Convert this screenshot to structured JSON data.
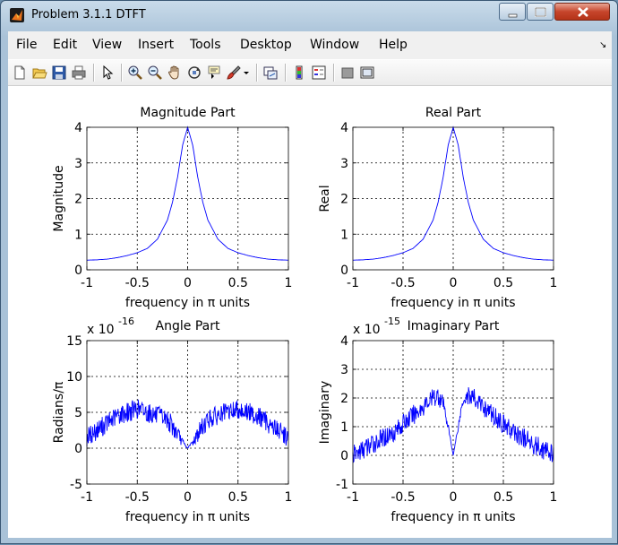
{
  "window": {
    "title": "Problem 3.1.1 DTFT"
  },
  "menu": [
    "File",
    "Edit",
    "View",
    "Insert",
    "Tools",
    "Desktop",
    "Window",
    "Help"
  ],
  "toolbar": {
    "icons": [
      "new-figure-icon",
      "open-file-icon",
      "save-icon",
      "print-icon",
      "pointer-icon",
      "zoom-in-icon",
      "zoom-out-icon",
      "pan-icon",
      "rotate-3d-icon",
      "data-cursor-icon",
      "brush-icon",
      "brush-dropdown-icon",
      "link-plot-icon",
      "colorbar-icon",
      "legend-icon",
      "hide-plot-tools-icon",
      "show-plot-tools-icon"
    ]
  },
  "colors": {
    "line": "#0000ff",
    "axes_bg": "#ffffff",
    "figure_bg": "#ffffff"
  },
  "chart_data": [
    {
      "type": "line",
      "title": "Magnitude Part",
      "xlabel": "frequency in π units",
      "ylabel": "Magnitude",
      "xlim": [
        -1,
        1
      ],
      "ylim": [
        0,
        4
      ],
      "xticks": [
        "-1",
        "-0.5",
        "0",
        "0.5",
        "1"
      ],
      "yticks": [
        "0",
        "1",
        "2",
        "3",
        "4"
      ],
      "exponent": "",
      "grid": true,
      "series": [
        {
          "x": [
            -1,
            -0.9,
            -0.8,
            -0.7,
            -0.6,
            -0.5,
            -0.4,
            -0.3,
            -0.2,
            -0.15,
            -0.1,
            -0.05,
            0,
            0.05,
            0.1,
            0.15,
            0.2,
            0.3,
            0.4,
            0.5,
            0.6,
            0.7,
            0.8,
            0.9,
            1
          ],
          "y": [
            0.27,
            0.28,
            0.3,
            0.34,
            0.4,
            0.48,
            0.6,
            0.86,
            1.4,
            1.9,
            2.6,
            3.5,
            4.0,
            3.5,
            2.6,
            1.9,
            1.4,
            0.86,
            0.6,
            0.48,
            0.4,
            0.34,
            0.3,
            0.28,
            0.27
          ]
        }
      ]
    },
    {
      "type": "line",
      "title": "Real Part",
      "xlabel": "frequency in π units",
      "ylabel": "Real",
      "xlim": [
        -1,
        1
      ],
      "ylim": [
        0,
        4
      ],
      "xticks": [
        "-1",
        "-0.5",
        "0",
        "0.5",
        "1"
      ],
      "yticks": [
        "0",
        "1",
        "2",
        "3",
        "4"
      ],
      "exponent": "",
      "grid": true,
      "series": [
        {
          "x": [
            -1,
            -0.9,
            -0.8,
            -0.7,
            -0.6,
            -0.5,
            -0.4,
            -0.3,
            -0.2,
            -0.15,
            -0.1,
            -0.05,
            0,
            0.05,
            0.1,
            0.15,
            0.2,
            0.3,
            0.4,
            0.5,
            0.6,
            0.7,
            0.8,
            0.9,
            1
          ],
          "y": [
            0.27,
            0.28,
            0.3,
            0.34,
            0.4,
            0.48,
            0.6,
            0.86,
            1.4,
            1.9,
            2.6,
            3.5,
            4.0,
            3.5,
            2.6,
            1.9,
            1.4,
            0.86,
            0.6,
            0.48,
            0.4,
            0.34,
            0.3,
            0.28,
            0.27
          ]
        }
      ]
    },
    {
      "type": "line",
      "title": "Angle Part",
      "xlabel": "frequency in π units",
      "ylabel": "Radians/π",
      "xlim": [
        -1,
        1
      ],
      "ylim": [
        -5,
        15
      ],
      "xticks": [
        "-1",
        "-0.5",
        "0",
        "0.5",
        "1"
      ],
      "yticks": [
        "-5",
        "0",
        "5",
        "10",
        "15"
      ],
      "exponent": "x 10",
      "exponent_power": "-16",
      "grid": true,
      "series": [
        {
          "x": [
            -1,
            -0.9,
            -0.8,
            -0.7,
            -0.6,
            -0.5,
            -0.4,
            -0.3,
            -0.2,
            -0.1,
            -0.05,
            0,
            0.05,
            0.1,
            0.2,
            0.3,
            0.4,
            0.5,
            0.6,
            0.7,
            0.8,
            0.9,
            1
          ],
          "y": [
            1.5,
            2.5,
            3.5,
            4.5,
            5.0,
            5.5,
            5.0,
            4.5,
            4.0,
            2.0,
            0.8,
            0,
            0.8,
            2.0,
            4.0,
            4.5,
            5.0,
            5.5,
            5.0,
            4.5,
            3.5,
            2.5,
            1.5
          ]
        }
      ]
    },
    {
      "type": "line",
      "title": "Imaginary Part",
      "xlabel": "frequency in π units",
      "ylabel": "Imaginary",
      "xlim": [
        -1,
        1
      ],
      "ylim": [
        -1,
        4
      ],
      "xticks": [
        "-1",
        "-0.5",
        "0",
        "0.5",
        "1"
      ],
      "yticks": [
        "-1",
        "0",
        "1",
        "2",
        "3",
        "4"
      ],
      "exponent": "x 10",
      "exponent_power": "-15",
      "grid": true,
      "series": [
        {
          "x": [
            -1,
            -0.9,
            -0.8,
            -0.7,
            -0.6,
            -0.5,
            -0.4,
            -0.3,
            -0.2,
            -0.15,
            -0.1,
            -0.05,
            0,
            0.05,
            0.1,
            0.15,
            0.2,
            0.3,
            0.4,
            0.5,
            0.6,
            0.7,
            0.8,
            0.9,
            1
          ],
          "y": [
            0.0,
            0.2,
            0.4,
            0.6,
            0.8,
            1.1,
            1.4,
            1.7,
            2.0,
            2.1,
            1.8,
            1.0,
            0.0,
            1.0,
            2.0,
            2.1,
            2.0,
            1.7,
            1.4,
            1.1,
            0.8,
            0.6,
            0.4,
            0.2,
            0.0
          ]
        }
      ]
    }
  ]
}
